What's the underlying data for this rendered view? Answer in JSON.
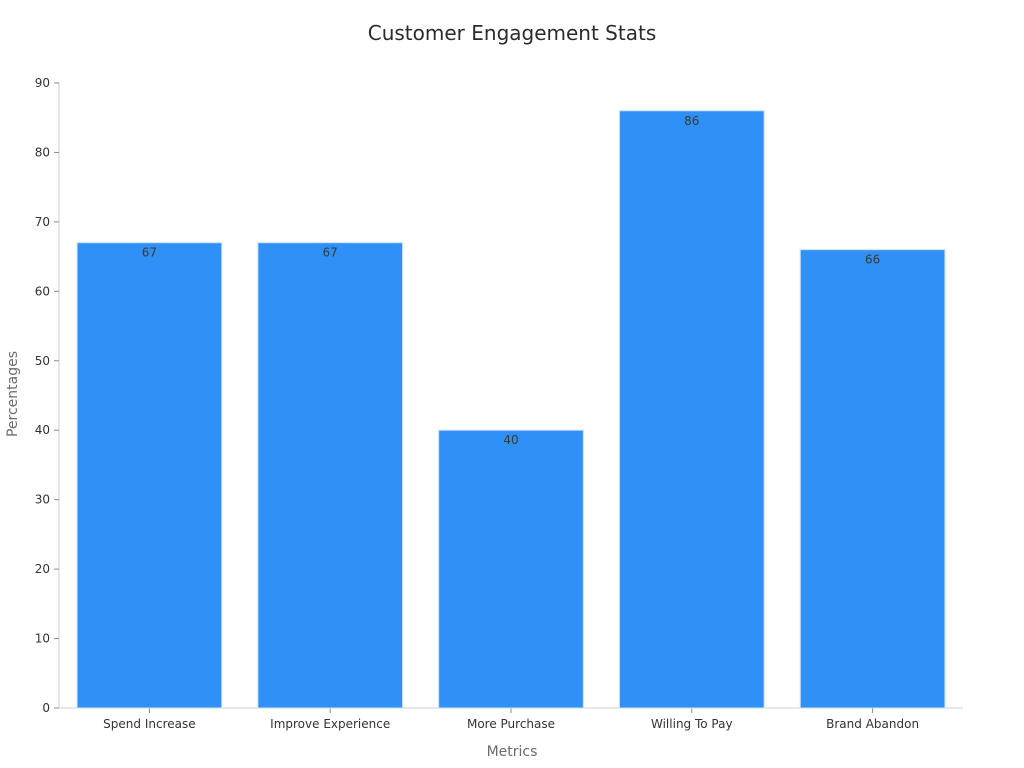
{
  "chart_data": {
    "type": "bar",
    "title": "Customer Engagement Stats",
    "xlabel": "Metrics",
    "ylabel": "Percentages",
    "categories": [
      "Spend Increase",
      "Improve Experience",
      "More Purchase",
      "Willing To Pay",
      "Brand Abandon"
    ],
    "values": [
      67,
      67,
      40,
      86,
      66
    ],
    "ylim": [
      0,
      90
    ],
    "yticks": [
      0,
      10,
      20,
      30,
      40,
      50,
      60,
      70,
      80,
      90
    ],
    "grid": false,
    "bar_color": "#2f91f7",
    "bar_edge_color": "#c9defa"
  }
}
